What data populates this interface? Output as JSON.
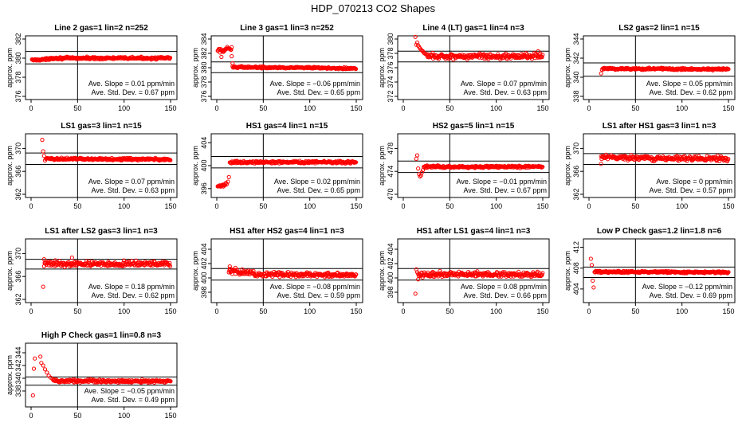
{
  "figure_title": "HDP_070213  CO2 Shapes",
  "colors": {
    "points": "#ff0000",
    "lines": "#000000"
  },
  "chart_data": [
    {
      "type": "scatter",
      "title": "Line 2 gas=1 lin=2 n=252",
      "ylabel": "approx. ppm",
      "xlim": [
        0,
        150
      ],
      "ylim": [
        376,
        382
      ],
      "xticks": [
        "0",
        "50",
        "100",
        "150"
      ],
      "yticks": [
        "376",
        "378",
        "380",
        "382"
      ],
      "hlines": [
        380.7,
        379.4
      ],
      "vline": 50,
      "slope_label": "Ave. Slope =  0.01  ppm/min",
      "sd_label": "Ave. Std. Dev. =  0.67  ppm",
      "segments": [
        {
          "x0": 1,
          "x1": 20,
          "y0": 379.8,
          "y1": 379.9,
          "noise": 0.07
        },
        {
          "x0": 20,
          "x1": 150,
          "y0": 380.0,
          "y1": 380.0,
          "noise": 0.08
        }
      ],
      "points": []
    },
    {
      "type": "scatter",
      "title": "Line 3 gas=1 lin=3 n=252",
      "ylabel": "approx. ppm",
      "xlim": [
        0,
        150
      ],
      "ylim": [
        376,
        384
      ],
      "xticks": [
        "0",
        "50",
        "100",
        "150"
      ],
      "yticks": [
        "376",
        "378",
        "380",
        "382",
        "384"
      ],
      "hlines": [
        380.8,
        379.3
      ],
      "vline": 50,
      "slope_label": "Ave. Slope =  −0.06  ppm/min",
      "sd_label": "Ave. Std. Dev. =  0.65  ppm",
      "segments": [
        {
          "x0": 1,
          "x1": 16,
          "y0": 382.3,
          "y1": 382.6,
          "noise": 0.25
        },
        {
          "x0": 17,
          "x1": 150,
          "y0": 380.1,
          "y1": 379.9,
          "noise": 0.08
        }
      ],
      "points": [
        [
          5,
          381.5
        ],
        [
          16,
          381.6
        ],
        [
          17,
          380.6
        ]
      ]
    },
    {
      "type": "scatter",
      "title": "Line 4 (LT) gas=1 lin=4 n=3",
      "ylabel": "approx. ppm",
      "xlim": [
        0,
        150
      ],
      "ylim": [
        372,
        380
      ],
      "xticks": [
        "0",
        "50",
        "100",
        "150"
      ],
      "yticks": [
        "372",
        "374",
        "376",
        "378",
        "380"
      ],
      "hlines": [
        378.3,
        376.8
      ],
      "vline": 50,
      "slope_label": "Ave. Slope =  0.07  ppm/min",
      "sd_label": "Ave. Std. Dev. =  0.63  ppm",
      "segments": [
        {
          "x0": 25,
          "x1": 150,
          "y0": 377.6,
          "y1": 377.6,
          "noise": 0.28
        }
      ],
      "points": [
        [
          13,
          380.3
        ],
        [
          14,
          379.2
        ],
        [
          15,
          379.5
        ],
        [
          16,
          379.1
        ],
        [
          17,
          378.9
        ],
        [
          18,
          378.7
        ],
        [
          19,
          378.5
        ],
        [
          20,
          378.4
        ],
        [
          21,
          378.3
        ],
        [
          22,
          378.1
        ],
        [
          23,
          378.0
        ],
        [
          24,
          377.9
        ],
        [
          145,
          378.3
        ]
      ]
    },
    {
      "type": "scatter",
      "title": "LS2 gas=2 lin=1 n=15",
      "ylabel": "approx. ppm",
      "xlim": [
        0,
        150
      ],
      "ylim": [
        338,
        344
      ],
      "xticks": [
        "0",
        "50",
        "100",
        "150"
      ],
      "yticks": [
        "338",
        "340",
        "342",
        "344"
      ],
      "hlines": [
        341.5,
        340.1
      ],
      "vline": 50,
      "slope_label": "Ave. Slope =  0.05  ppm/min",
      "sd_label": "Ave. Std. Dev. =  0.62  ppm",
      "segments": [
        {
          "x0": 15,
          "x1": 150,
          "y0": 340.9,
          "y1": 340.85,
          "noise": 0.08
        }
      ],
      "points": [
        [
          13,
          340.4
        ],
        [
          14,
          340.8
        ]
      ]
    },
    {
      "type": "scatter",
      "title": "LS1 gas=3 lin=1 n=15",
      "ylabel": "approx. ppm",
      "xlim": [
        0,
        150
      ],
      "ylim": [
        362,
        372
      ],
      "xticks": [
        "0",
        "50",
        "100",
        "150"
      ],
      "yticks": [
        "362",
        "366",
        "370"
      ],
      "hlines": [
        369.2,
        367.2
      ],
      "vline": 50,
      "slope_label": "Ave. Slope =  0.07  ppm/min",
      "sd_label": "Ave. Std. Dev. =  0.63  ppm",
      "segments": [
        {
          "x0": 16,
          "x1": 150,
          "y0": 368.2,
          "y1": 368.1,
          "noise": 0.14
        }
      ],
      "points": [
        [
          12,
          371.5
        ],
        [
          13,
          369.5
        ],
        [
          14,
          368.7
        ],
        [
          15,
          367.9
        ]
      ]
    },
    {
      "type": "scatter",
      "title": "HS1 gas=4 lin=1 n=15",
      "ylabel": "approx. ppm",
      "xlim": [
        0,
        150
      ],
      "ylim": [
        395,
        405
      ],
      "xticks": [
        "0",
        "50",
        "100",
        "150"
      ],
      "yticks": [
        "396",
        "400",
        "404"
      ],
      "hlines": [
        401.6,
        399.6
      ],
      "vline": 50,
      "slope_label": "Ave. Slope =  0.02  ppm/min",
      "sd_label": "Ave. Std. Dev. =  0.65  ppm",
      "segments": [
        {
          "x0": 1,
          "x1": 11,
          "y0": 396.3,
          "y1": 396.8,
          "noise": 0.15
        },
        {
          "x0": 14,
          "x1": 150,
          "y0": 400.6,
          "y1": 400.6,
          "noise": 0.14
        }
      ],
      "points": [
        [
          12,
          397.2
        ],
        [
          13,
          398.0
        ]
      ]
    },
    {
      "type": "scatter",
      "title": "HS2 gas=5 lin=1 n=15",
      "ylabel": "approx. ppm",
      "xlim": [
        0,
        150
      ],
      "ylim": [
        470,
        480
      ],
      "xticks": [
        "0",
        "50",
        "100",
        "150"
      ],
      "yticks": [
        "470",
        "474",
        "478"
      ],
      "hlines": [
        475.8,
        473.8
      ],
      "vline": 50,
      "slope_label": "Ave. Slope =  −0.01  ppm/min",
      "sd_label": "Ave. Std. Dev. =  0.67  ppm",
      "segments": [
        {
          "x0": 22,
          "x1": 150,
          "y0": 474.8,
          "y1": 474.8,
          "noise": 0.13
        }
      ],
      "points": [
        [
          14,
          476.2
        ],
        [
          15,
          476.8
        ],
        [
          16,
          474.5
        ],
        [
          17,
          473.5
        ],
        [
          18,
          473.1
        ],
        [
          19,
          473.3
        ],
        [
          20,
          473.8
        ],
        [
          21,
          474.2
        ]
      ]
    },
    {
      "type": "scatter",
      "title": "LS1 after HS1 gas=3 lin=1 n=3",
      "ylabel": "approx. ppm",
      "xlim": [
        0,
        150
      ],
      "ylim": [
        362,
        372
      ],
      "xticks": [
        "0",
        "50",
        "100",
        "150"
      ],
      "yticks": [
        "362",
        "366",
        "370"
      ],
      "hlines": [
        369.1,
        367.2
      ],
      "vline": 50,
      "slope_label": "Ave. Slope =  0  ppm/min",
      "sd_label": "Ave. Std. Dev. =  0.57  ppm",
      "segments": [
        {
          "x0": 13,
          "x1": 150,
          "y0": 368.4,
          "y1": 368.2,
          "noise": 0.28
        }
      ],
      "points": [
        [
          13,
          367.3
        ]
      ]
    },
    {
      "type": "scatter",
      "title": "LS1 after LS2 gas=3 lin=1 n=3",
      "ylabel": "approx. ppm",
      "xlim": [
        0,
        150
      ],
      "ylim": [
        362,
        372
      ],
      "xticks": [
        "0",
        "50",
        "100",
        "150"
      ],
      "yticks": [
        "362",
        "366",
        "370"
      ],
      "hlines": [
        369.0,
        367.3
      ],
      "vline": 50,
      "slope_label": "Ave. Slope =  0.18  ppm/min",
      "sd_label": "Ave. Std. Dev. =  0.62  ppm",
      "segments": [
        {
          "x0": 14,
          "x1": 150,
          "y0": 368.2,
          "y1": 368.2,
          "noise": 0.32
        }
      ],
      "points": [
        [
          13,
          364.2
        ],
        [
          14,
          369.0
        ],
        [
          44,
          369.3
        ]
      ]
    },
    {
      "type": "scatter",
      "title": "HS1 after HS2 gas=4 lin=1 n=3",
      "ylabel": "approx. ppm",
      "xlim": [
        0,
        150
      ],
      "ylim": [
        397,
        405
      ],
      "xticks": [
        "0",
        "50",
        "100",
        "150"
      ],
      "yticks": [
        "398",
        "400",
        "402",
        "404"
      ],
      "hlines": [
        401.3,
        399.7
      ],
      "vline": 50,
      "slope_label": "Ave. Slope =  −0.08  ppm/min",
      "sd_label": "Ave. Std. Dev. =  0.59  ppm",
      "segments": [
        {
          "x0": 13,
          "x1": 40,
          "y0": 400.9,
          "y1": 400.7,
          "noise": 0.25
        },
        {
          "x0": 40,
          "x1": 150,
          "y0": 400.5,
          "y1": 400.4,
          "noise": 0.22
        }
      ],
      "points": [
        [
          14,
          401.6
        ],
        [
          20,
          401.4
        ]
      ]
    },
    {
      "type": "scatter",
      "title": "HS1 after LS1 gas=4 lin=1 n=3",
      "ylabel": "approx. ppm",
      "xlim": [
        0,
        150
      ],
      "ylim": [
        397,
        405
      ],
      "xticks": [
        "0",
        "50",
        "100",
        "150"
      ],
      "yticks": [
        "398",
        "400",
        "402",
        "404"
      ],
      "hlines": [
        401.3,
        399.7
      ],
      "vline": 50,
      "slope_label": "Ave. Slope =  0.08  ppm/min",
      "sd_label": "Ave. Std. Dev. =  0.66  ppm",
      "segments": [
        {
          "x0": 16,
          "x1": 150,
          "y0": 400.5,
          "y1": 400.5,
          "noise": 0.25
        }
      ],
      "points": [
        [
          13,
          397.8
        ],
        [
          14,
          401.2
        ],
        [
          15,
          400.8
        ],
        [
          16,
          399.8
        ]
      ]
    },
    {
      "type": "scatter",
      "title": "Low P Check gas=1.2 lin=1.8 n=6",
      "ylabel": "approx. ppm",
      "xlim": [
        0,
        150
      ],
      "ylim": [
        402,
        413
      ],
      "xticks": [
        "0",
        "50",
        "100",
        "150"
      ],
      "yticks": [
        "404",
        "408",
        "412"
      ],
      "hlines": [
        408.2,
        406.2
      ],
      "vline": 50,
      "slope_label": "Ave. Slope =  −0.12  ppm/min",
      "sd_label": "Ave. Std. Dev. =  0.69  ppm",
      "segments": [
        {
          "x0": 6,
          "x1": 150,
          "y0": 407.3,
          "y1": 407.2,
          "noise": 0.12
        }
      ],
      "points": [
        [
          2,
          409.8
        ],
        [
          3,
          408.6
        ],
        [
          4,
          405.6
        ],
        [
          5,
          404.3
        ]
      ]
    },
    {
      "type": "scatter",
      "title": "High P Check gas=1 lin=0.8 n=3",
      "ylabel": "approx. ppm",
      "xlim": [
        0,
        150
      ],
      "ylim": [
        336,
        345
      ],
      "xticks": [
        "0",
        "50",
        "100",
        "150"
      ],
      "yticks": [
        "338",
        "340",
        "342",
        "344"
      ],
      "hlines": [
        340.2,
        338.9
      ],
      "vline": 50,
      "slope_label": "Ave. Slope =  −0.05  ppm/min",
      "sd_label": "Ave. Std. Dev. =  0.49  ppm",
      "segments": [
        {
          "x0": 24,
          "x1": 150,
          "y0": 339.6,
          "y1": 339.5,
          "noise": 0.15
        }
      ],
      "points": [
        [
          2,
          337.3
        ],
        [
          3,
          341.5
        ],
        [
          4,
          343.1
        ],
        [
          10,
          343.4
        ],
        [
          11,
          342.4
        ],
        [
          13,
          342.0
        ],
        [
          15,
          341.4
        ],
        [
          17,
          340.9
        ],
        [
          19,
          340.4
        ],
        [
          21,
          340.1
        ],
        [
          23,
          339.9
        ]
      ]
    }
  ]
}
